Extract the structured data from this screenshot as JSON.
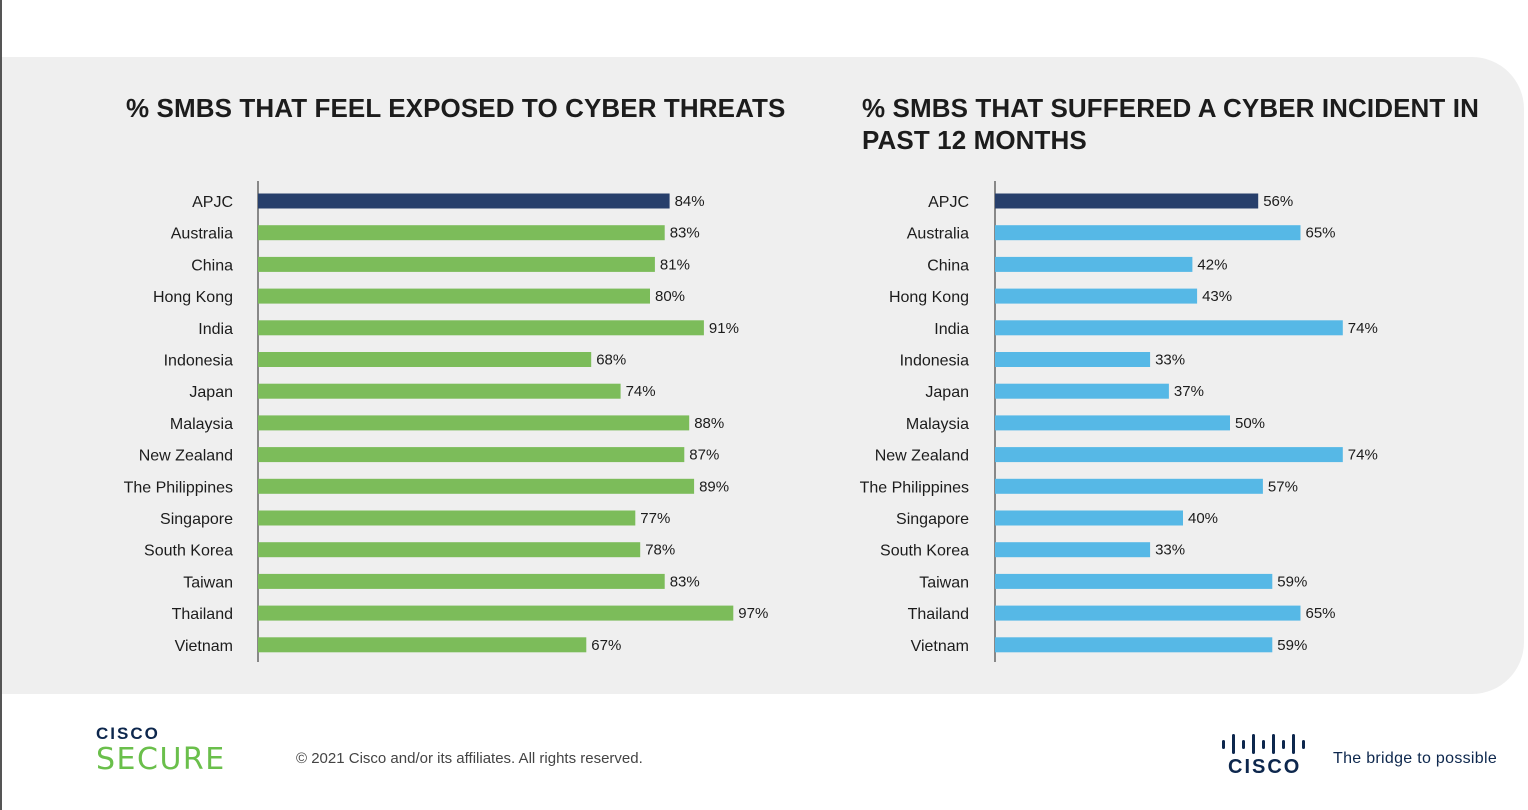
{
  "colors": {
    "highlight": "#273f6b",
    "left_series": "#7cbc5a",
    "right_series": "#56b8e6",
    "panel_bg": "#efefef",
    "brand_green": "#6abf4b",
    "brand_navy": "#0d274d"
  },
  "chart_data": [
    {
      "type": "bar",
      "orientation": "horizontal",
      "title": "% SMBS THAT FEEL EXPOSED TO CYBER THREATS",
      "categories": [
        "APJC",
        "Australia",
        "China",
        "Hong Kong",
        "India",
        "Indonesia",
        "Japan",
        "Malaysia",
        "New Zealand",
        "The Philippines",
        "Singapore",
        "South Korea",
        "Taiwan",
        "Thailand",
        "Vietnam"
      ],
      "values": [
        84,
        83,
        81,
        80,
        91,
        68,
        74,
        88,
        87,
        89,
        77,
        78,
        83,
        97,
        67
      ],
      "value_labels": [
        "84%",
        "83%",
        "81%",
        "80%",
        "91%",
        "68%",
        "74%",
        "88%",
        "87%",
        "89%",
        "77%",
        "78%",
        "83%",
        "97%",
        "67%"
      ],
      "highlight_index": 0,
      "xlim": [
        0,
        100
      ],
      "grid": false,
      "legend": "none"
    },
    {
      "type": "bar",
      "orientation": "horizontal",
      "title": "% SMBS THAT SUFFERED A CYBER INCIDENT IN PAST 12 MONTHS",
      "categories": [
        "APJC",
        "Australia",
        "China",
        "Hong Kong",
        "India",
        "Indonesia",
        "Japan",
        "Malaysia",
        "New Zealand",
        "The Philippines",
        "Singapore",
        "South Korea",
        "Taiwan",
        "Thailand",
        "Vietnam"
      ],
      "values": [
        56,
        65,
        42,
        43,
        74,
        33,
        37,
        50,
        74,
        57,
        40,
        33,
        59,
        65,
        59
      ],
      "value_labels": [
        "56%",
        "65%",
        "42%",
        "43%",
        "74%",
        "33%",
        "37%",
        "50%",
        "74%",
        "57%",
        "40%",
        "33%",
        "59%",
        "65%",
        "59%"
      ],
      "highlight_index": 0,
      "xlim": [
        0,
        100
      ],
      "grid": false,
      "legend": "none"
    }
  ],
  "footer": {
    "brand_line1": "CISCO",
    "brand_line2": "SECURE",
    "copyright": "© 2021 Cisco and/or its affiliates. All rights reserved.",
    "logo_word": "CISCO",
    "tagline": "The bridge to possible"
  }
}
